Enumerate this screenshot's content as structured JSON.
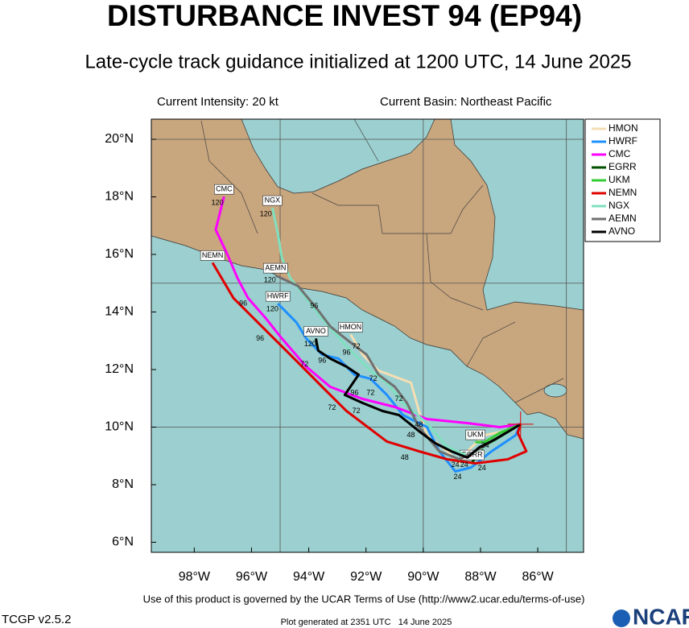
{
  "map": {
    "title": "DISTURBANCE INVEST 94 (EP94)",
    "subtitle": "Late-cycle track guidance initialized at 1200 UTC, 14 June 2025",
    "intensity": "Current Intensity: 20 kt",
    "basin": "Current Basin: Northeast Pacific",
    "terms": "Use of this product is governed by the UCAR Terms of Use (http://www2.ucar.edu/terms-of-use)",
    "version": "TCGP v2.5.2",
    "generated": "Plot generated at 2351 UTC   14 June 2025",
    "logo": "NCAR",
    "xlim": [
      -99.5,
      -84.4
    ],
    "ylim": [
      5.65,
      20.7
    ],
    "xticks": [
      {
        "value": -98,
        "label": "98°W"
      },
      {
        "value": -96,
        "label": "96°W"
      },
      {
        "value": -94,
        "label": "94°W"
      },
      {
        "value": -92,
        "label": "92°W"
      },
      {
        "value": -90,
        "label": "90°W"
      },
      {
        "value": -88,
        "label": "88°W"
      },
      {
        "value": -86,
        "label": "86°W"
      }
    ],
    "yticks": [
      {
        "value": 6,
        "label": "6°N"
      },
      {
        "value": 8,
        "label": "8°N"
      },
      {
        "value": 10,
        "label": "10°N"
      },
      {
        "value": 12,
        "label": "12°N"
      },
      {
        "value": 14,
        "label": "14°N"
      },
      {
        "value": 16,
        "label": "16°N"
      },
      {
        "value": 18,
        "label": "18°N"
      },
      {
        "value": 20,
        "label": "20°N"
      }
    ],
    "grid_lon": [
      -95,
      -90,
      -85
    ],
    "grid_lat": [
      10,
      15,
      20
    ],
    "center": {
      "lon": -86.6,
      "lat": 10.1
    },
    "tracks": [
      {
        "name": "HMON",
        "color": "#f5deb3",
        "lon": [
          -86.6,
          -87.16,
          -87.86,
          -88.46,
          -88.74,
          -89.16,
          -89.87,
          -90.15,
          -90.43,
          -91.56,
          -92.12,
          -92.54
        ],
        "lat": [
          10.1,
          9.86,
          9.72,
          9.16,
          8.74,
          9.16,
          9.72,
          10.56,
          11.54,
          11.96,
          12.52,
          13.22
        ]
      },
      {
        "name": "HWRF",
        "color": "#1e90ff",
        "lon": [
          -86.6,
          -86.77,
          -87.61,
          -88.32,
          -88.88,
          -89.44,
          -89.87,
          -90.71,
          -91.27,
          -91.84,
          -92.4,
          -92.96,
          -93.53,
          -94.09,
          -94.43,
          -95.08
        ],
        "lat": [
          10.1,
          9.72,
          9.16,
          8.6,
          8.46,
          9.16,
          10.0,
          10.42,
          11.12,
          11.68,
          11.82,
          12.38,
          12.52,
          13.08,
          13.64,
          14.29
        ]
      },
      {
        "name": "CMC",
        "color": "#ff00ff",
        "lon": [
          -86.6,
          -87.33,
          -88.46,
          -89.87,
          -90.99,
          -92.12,
          -93.25,
          -94.09,
          -94.94,
          -95.5,
          -96.12,
          -96.49,
          -96.85,
          -97.25,
          -96.96
        ],
        "lat": [
          10.1,
          10.0,
          10.14,
          10.28,
          10.7,
          10.98,
          11.4,
          12.1,
          13.08,
          13.78,
          14.48,
          15.18,
          16.02,
          16.86,
          18.01
        ]
      },
      {
        "name": "EGRR",
        "color": "#005000",
        "lon": [
          -86.6,
          -87.16,
          -87.86,
          -88.29
        ],
        "lat": [
          10.1,
          9.78,
          9.37,
          8.78
        ]
      },
      {
        "name": "UKM",
        "color": "#33cc33",
        "lon": [
          -86.6,
          -87.33,
          -87.86,
          -88.18
        ],
        "lat": [
          10.1,
          9.8,
          9.48,
          9.48
        ]
      },
      {
        "name": "NEMN",
        "color": "#e00000",
        "lon": [
          -86.6,
          -86.7,
          -86.4,
          -87.05,
          -88.18,
          -89.16,
          -90.15,
          -91.27,
          -92.68,
          -93.53,
          -94.65,
          -95.78,
          -96.63,
          -97.36
        ],
        "lat": [
          10.1,
          9.8,
          9.16,
          8.88,
          8.74,
          8.88,
          9.16,
          9.5,
          10.56,
          11.4,
          12.52,
          13.64,
          14.48,
          15.71
        ]
      },
      {
        "name": "NGX",
        "color": "#7fe0c0",
        "lon": [
          -86.6,
          -87.61,
          -88.46,
          -89.16,
          -89.87,
          -90.71,
          -91.27,
          -91.84,
          -92.68,
          -93.53,
          -94.09,
          -94.65,
          -94.94,
          -95.08,
          -95.27
        ],
        "lat": [
          10.1,
          9.44,
          9.02,
          9.3,
          10.14,
          10.84,
          11.54,
          11.96,
          12.8,
          13.78,
          14.48,
          15.18,
          15.88,
          16.72,
          17.62
        ]
      },
      {
        "name": "AEMN",
        "color": "#707070",
        "lon": [
          -86.6,
          -87.47,
          -88.18,
          -88.74,
          -89.44,
          -90.15,
          -90.57,
          -90.99,
          -91.56,
          -91.98,
          -92.54,
          -93.25,
          -93.67,
          -94.37,
          -95.16
        ],
        "lat": [
          10.1,
          9.58,
          9.16,
          8.88,
          9.16,
          10.0,
          10.84,
          11.4,
          11.82,
          12.52,
          12.94,
          13.5,
          14.06,
          14.9,
          15.27
        ]
      },
      {
        "name": "AVNO",
        "color": "#000000",
        "lon": [
          -86.6,
          -87.47,
          -88.04,
          -88.46,
          -89.02,
          -89.58,
          -90.15,
          -90.85,
          -91.42,
          -92.12,
          -92.74,
          -92.26,
          -92.68,
          -93.25,
          -93.67,
          -93.75
        ],
        "lat": [
          10.1,
          9.58,
          9.3,
          8.94,
          9.16,
          9.44,
          9.86,
          10.42,
          10.56,
          10.84,
          11.12,
          11.82,
          12.1,
          12.38,
          12.66,
          13.08
        ]
      }
    ],
    "hour_labels": [
      {
        "text": "120",
        "lon": -97.19,
        "lat": 17.79
      },
      {
        "text": "120",
        "lon": -95.5,
        "lat": 17.4
      },
      {
        "text": "120",
        "lon": -95.36,
        "lat": 15.1
      },
      {
        "text": "120",
        "lon": -95.27,
        "lat": 14.09
      },
      {
        "text": "120",
        "lon": -93.95,
        "lat": 12.88
      },
      {
        "text": "96",
        "lon": -96.29,
        "lat": 14.29
      },
      {
        "text": "96",
        "lon": -95.7,
        "lat": 13.08
      },
      {
        "text": "96",
        "lon": -93.81,
        "lat": 14.2
      },
      {
        "text": "96",
        "lon": -92.68,
        "lat": 12.58
      },
      {
        "text": "96",
        "lon": -93.53,
        "lat": 12.3
      },
      {
        "text": "96",
        "lon": -92.4,
        "lat": 11.18
      },
      {
        "text": "72",
        "lon": -94.15,
        "lat": 12.18
      },
      {
        "text": "72",
        "lon": -93.19,
        "lat": 10.67
      },
      {
        "text": "72",
        "lon": -91.84,
        "lat": 11.18
      },
      {
        "text": "72",
        "lon": -91.75,
        "lat": 11.68
      },
      {
        "text": "72",
        "lon": -90.85,
        "lat": 10.98
      },
      {
        "text": "72",
        "lon": -92.34,
        "lat": 12.8
      },
      {
        "text": "72",
        "lon": -92.34,
        "lat": 10.56
      },
      {
        "text": "48",
        "lon": -90.15,
        "lat": 10.08
      },
      {
        "text": "48",
        "lon": -90.65,
        "lat": 8.94
      },
      {
        "text": "48",
        "lon": -90.43,
        "lat": 9.72
      },
      {
        "text": "24",
        "lon": -88.8,
        "lat": 8.26
      },
      {
        "text": "24",
        "lon": -88.88,
        "lat": 8.68
      },
      {
        "text": "24",
        "lon": -87.95,
        "lat": 8.57
      },
      {
        "text": "24",
        "lon": -87.84,
        "lat": 9.36
      },
      {
        "text": "24",
        "lon": -88.57,
        "lat": 8.68
      }
    ]
  }
}
